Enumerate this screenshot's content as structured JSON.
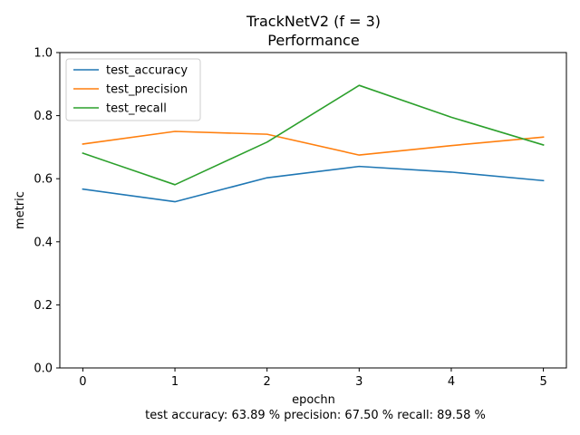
{
  "chart_data": {
    "type": "line",
    "title": "TrackNetV2 (f = 3)",
    "subtitle": "Performance",
    "xlabel": "epochn",
    "ylabel": "metric",
    "caption": "test  accuracy: 63.89 %  precision: 67.50 %  recall: 89.58 %",
    "x": [
      0,
      1,
      2,
      3,
      4,
      5
    ],
    "xticks": [
      "0",
      "1",
      "2",
      "3",
      "4",
      "5"
    ],
    "yticks": [
      "0.0",
      "0.2",
      "0.4",
      "0.6",
      "0.8",
      "1.0"
    ],
    "xlim": [
      -0.25,
      5.25
    ],
    "ylim": [
      0.0,
      1.0
    ],
    "grid": false,
    "legend_position": "top-left",
    "series": [
      {
        "name": "test_accuracy",
        "color": "#1f77b4",
        "values": [
          0.567,
          0.527,
          0.603,
          0.639,
          0.621,
          0.594
        ]
      },
      {
        "name": "test_precision",
        "color": "#ff7f0e",
        "values": [
          0.71,
          0.75,
          0.741,
          0.675,
          0.705,
          0.732
        ]
      },
      {
        "name": "test_recall",
        "color": "#2ca02c",
        "values": [
          0.681,
          0.581,
          0.716,
          0.896,
          0.795,
          0.707
        ]
      }
    ]
  }
}
